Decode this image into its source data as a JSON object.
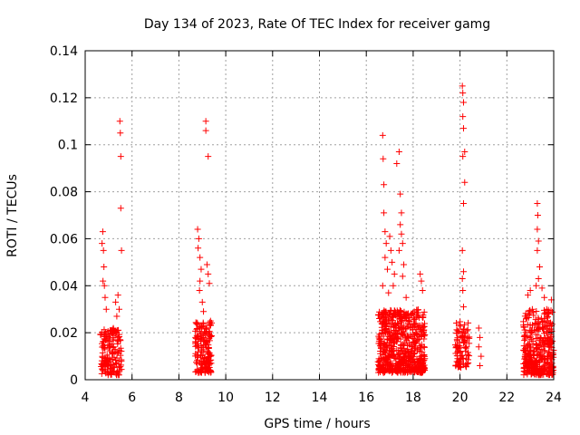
{
  "chart_data": {
    "type": "scatter",
    "title": "Day 134 of 2023, Rate Of TEC Index for receiver gamg",
    "xlabel": "GPS time / hours",
    "ylabel": "ROTI / TECUs",
    "xlim": [
      4,
      24
    ],
    "ylim": [
      0,
      0.14
    ],
    "xticks": [
      "4",
      "6",
      "8",
      "10",
      "12",
      "14",
      "16",
      "18",
      "20",
      "22",
      "24"
    ],
    "yticks": [
      "0",
      "0.02",
      "0.04",
      "0.06",
      "0.08",
      "0.1",
      "0.12",
      "0.14"
    ],
    "grid": true,
    "marker": "+",
    "color": "#ff0000",
    "clusters": [
      {
        "x_start": 4.65,
        "x_end": 5.55,
        "y_min": 0.002,
        "y_max": 0.022,
        "count": 160
      },
      {
        "x_start": 8.7,
        "x_end": 9.4,
        "y_min": 0.003,
        "y_max": 0.025,
        "count": 170
      },
      {
        "x_start": 16.5,
        "x_end": 18.5,
        "y_min": 0.003,
        "y_max": 0.03,
        "count": 650
      },
      {
        "x_start": 19.8,
        "x_end": 20.4,
        "y_min": 0.005,
        "y_max": 0.025,
        "count": 90
      },
      {
        "x_start": 22.7,
        "x_end": 24.0,
        "y_min": 0.002,
        "y_max": 0.03,
        "count": 380
      }
    ],
    "outliers": [
      [
        4.75,
        0.063
      ],
      [
        4.72,
        0.058
      ],
      [
        4.78,
        0.055
      ],
      [
        4.8,
        0.048
      ],
      [
        4.76,
        0.042
      ],
      [
        4.82,
        0.04
      ],
      [
        4.85,
        0.035
      ],
      [
        4.9,
        0.03
      ],
      [
        5.3,
        0.033
      ],
      [
        5.35,
        0.027
      ],
      [
        5.4,
        0.036
      ],
      [
        5.45,
        0.03
      ],
      [
        5.48,
        0.11
      ],
      [
        5.5,
        0.105
      ],
      [
        5.52,
        0.095
      ],
      [
        5.52,
        0.073
      ],
      [
        5.55,
        0.055
      ],
      [
        8.8,
        0.064
      ],
      [
        8.85,
        0.06
      ],
      [
        8.82,
        0.056
      ],
      [
        8.9,
        0.052
      ],
      [
        8.95,
        0.047
      ],
      [
        8.9,
        0.042
      ],
      [
        8.88,
        0.038
      ],
      [
        9.0,
        0.033
      ],
      [
        9.05,
        0.029
      ],
      [
        9.15,
        0.11
      ],
      [
        9.15,
        0.106
      ],
      [
        9.25,
        0.095
      ],
      [
        9.2,
        0.049
      ],
      [
        9.25,
        0.045
      ],
      [
        9.3,
        0.041
      ],
      [
        9.35,
        0.025
      ],
      [
        16.7,
        0.104
      ],
      [
        16.72,
        0.094
      ],
      [
        16.75,
        0.083
      ],
      [
        16.75,
        0.071
      ],
      [
        16.8,
        0.063
      ],
      [
        16.85,
        0.058
      ],
      [
        16.8,
        0.052
      ],
      [
        16.9,
        0.047
      ],
      [
        16.7,
        0.04
      ],
      [
        16.95,
        0.037
      ],
      [
        17.0,
        0.061
      ],
      [
        17.05,
        0.055
      ],
      [
        17.1,
        0.05
      ],
      [
        17.2,
        0.045
      ],
      [
        17.15,
        0.04
      ],
      [
        17.3,
        0.092
      ],
      [
        17.4,
        0.097
      ],
      [
        17.45,
        0.079
      ],
      [
        17.5,
        0.071
      ],
      [
        17.45,
        0.066
      ],
      [
        17.5,
        0.062
      ],
      [
        17.55,
        0.058
      ],
      [
        17.4,
        0.055
      ],
      [
        17.6,
        0.049
      ],
      [
        17.55,
        0.044
      ],
      [
        17.7,
        0.035
      ],
      [
        18.3,
        0.045
      ],
      [
        18.35,
        0.042
      ],
      [
        18.4,
        0.038
      ],
      [
        20.1,
        0.125
      ],
      [
        20.12,
        0.122
      ],
      [
        20.15,
        0.118
      ],
      [
        20.12,
        0.112
      ],
      [
        20.15,
        0.107
      ],
      [
        20.2,
        0.097
      ],
      [
        20.12,
        0.095
      ],
      [
        20.2,
        0.084
      ],
      [
        20.15,
        0.075
      ],
      [
        20.1,
        0.055
      ],
      [
        20.15,
        0.046
      ],
      [
        20.1,
        0.043
      ],
      [
        20.12,
        0.038
      ],
      [
        20.15,
        0.031
      ],
      [
        20.8,
        0.022
      ],
      [
        20.85,
        0.018
      ],
      [
        20.8,
        0.014
      ],
      [
        20.9,
        0.01
      ],
      [
        20.85,
        0.006
      ],
      [
        23.3,
        0.075
      ],
      [
        23.32,
        0.07
      ],
      [
        23.3,
        0.064
      ],
      [
        23.35,
        0.059
      ],
      [
        23.3,
        0.055
      ],
      [
        23.4,
        0.048
      ],
      [
        23.35,
        0.043
      ],
      [
        23.25,
        0.04
      ],
      [
        23.0,
        0.038
      ],
      [
        22.9,
        0.036
      ],
      [
        23.5,
        0.039
      ],
      [
        23.6,
        0.035
      ],
      [
        23.9,
        0.034
      ],
      [
        23.7,
        0.03
      ],
      [
        23.8,
        0.028
      ]
    ]
  }
}
